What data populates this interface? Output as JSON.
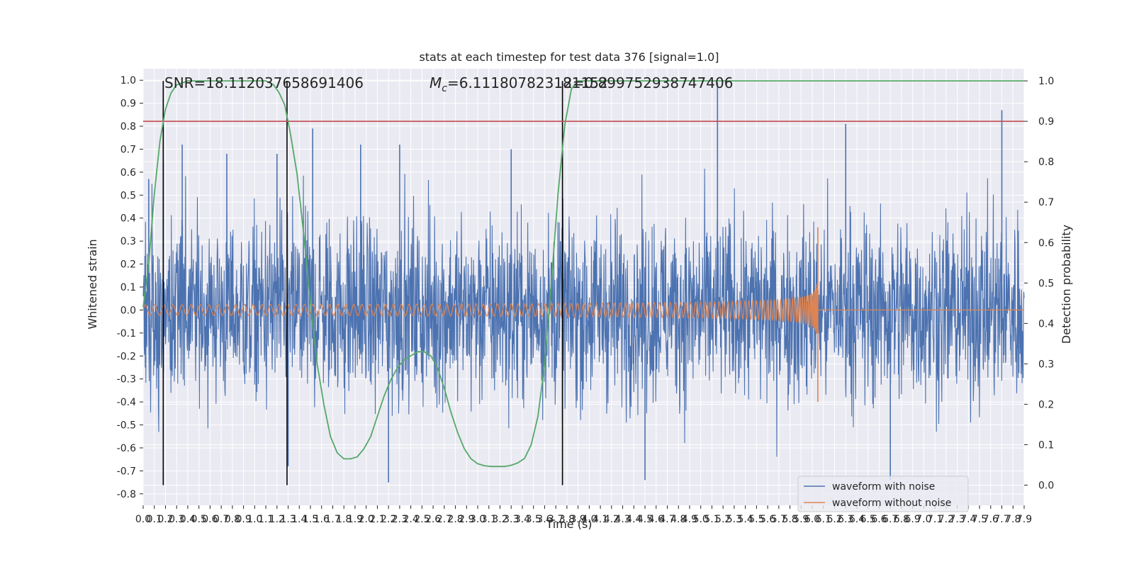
{
  "chart_data": {
    "type": "line",
    "title": "stats at each timestep for test data 376 [signal=1.0]",
    "xlabel": "Time (s)",
    "ylabel": "Whitened strain",
    "y2label": "Detection probability",
    "xlim": [
      0.0,
      7.9
    ],
    "ylim": [
      -0.85,
      1.05
    ],
    "y2lim": [
      -0.05,
      1.03
    ],
    "xticks": [
      "0.0",
      "0.1",
      "0.2",
      "0.3",
      "0.4",
      "0.5",
      "0.6",
      "0.7",
      "0.8",
      "0.9",
      "1.0",
      "1.1",
      "1.2",
      "1.3",
      "1.4",
      "1.5",
      "1.6",
      "1.7",
      "1.8",
      "1.9",
      "2.0",
      "2.1",
      "2.2",
      "2.3",
      "2.4",
      "2.5",
      "2.6",
      "2.7",
      "2.8",
      "2.9",
      "3.0",
      "3.1",
      "3.2",
      "3.3",
      "3.4",
      "3.5",
      "3.6",
      "3.7",
      "3.8",
      "3.9",
      "4.0",
      "4.1",
      "4.2",
      "4.3",
      "4.4",
      "4.5",
      "4.6",
      "4.7",
      "4.8",
      "4.9",
      "5.0",
      "5.1",
      "5.2",
      "5.3",
      "5.4",
      "5.5",
      "5.6",
      "5.7",
      "5.8",
      "5.9",
      "6.0",
      "6.1",
      "6.2",
      "6.3",
      "6.4",
      "6.5",
      "6.6",
      "6.7",
      "6.8",
      "6.9",
      "7.0",
      "7.1",
      "7.2",
      "7.3",
      "7.4",
      "7.5",
      "7.6",
      "7.7",
      "7.8",
      "7.9"
    ],
    "yticks": [
      "1.0",
      "0.9",
      "0.8",
      "0.7",
      "0.6",
      "0.5",
      "0.4",
      "0.3",
      "0.2",
      "0.1",
      "0.0",
      "-0.1",
      "-0.2",
      "-0.3",
      "-0.4",
      "-0.5",
      "-0.6",
      "-0.7",
      "-0.8"
    ],
    "y2ticks": [
      "1.0",
      "0.9",
      "0.8",
      "0.7",
      "0.6",
      "0.5",
      "0.4",
      "0.3",
      "0.2",
      "0.1",
      "0.0"
    ],
    "annotations": {
      "snr": "SNR=18.112037658691406",
      "mc_prefix": "M",
      "mc_sub": "c",
      "mc_text": "=6.111807823181152",
      "overlap": "2=0.899752938747406"
    },
    "legend": {
      "placement": "lower right",
      "entries": [
        "waveform with noise",
        "waveform without noise"
      ]
    },
    "series": [
      {
        "name": "waveform with noise",
        "color": "#4c72b0",
        "description_of_shape": "noisy whitened strain",
        "envelope_typical": [
          -0.45,
          0.5
        ],
        "spikes": [
          {
            "x": 0.05,
            "y": 0.57
          },
          {
            "x": 0.18,
            "y": 0.65
          },
          {
            "x": 0.35,
            "y": 0.72
          },
          {
            "x": 0.75,
            "y": 0.68
          },
          {
            "x": 1.2,
            "y": 0.68
          },
          {
            "x": 1.3,
            "y": -0.68
          },
          {
            "x": 1.52,
            "y": 0.79
          },
          {
            "x": 1.95,
            "y": 0.72
          },
          {
            "x": 2.3,
            "y": 0.72
          },
          {
            "x": 2.2,
            "y": -0.75
          },
          {
            "x": 3.3,
            "y": 0.7
          },
          {
            "x": 4.5,
            "y": -0.74
          },
          {
            "x": 5.15,
            "y": 0.99
          },
          {
            "x": 6.3,
            "y": 0.81
          },
          {
            "x": 6.7,
            "y": -0.74
          },
          {
            "x": 7.7,
            "y": 0.87
          }
        ]
      },
      {
        "name": "waveform without noise",
        "color": "#dd8452",
        "description_of_shape": "chirp signal",
        "start_amplitude": 0.025,
        "peak": {
          "x": 6.05,
          "y_max": 0.36,
          "y_min": -0.4
        },
        "end_time": 6.05
      }
    ],
    "detection_probability": {
      "color": "#55a868",
      "axis": "right",
      "points": [
        [
          0.0,
          0.44
        ],
        [
          0.05,
          0.55
        ],
        [
          0.1,
          0.72
        ],
        [
          0.15,
          0.85
        ],
        [
          0.2,
          0.93
        ],
        [
          0.25,
          0.97
        ],
        [
          0.3,
          0.99
        ],
        [
          0.4,
          1.0
        ],
        [
          1.1,
          1.0
        ],
        [
          1.17,
          0.99
        ],
        [
          1.22,
          0.97
        ],
        [
          1.27,
          0.94
        ],
        [
          1.32,
          0.87
        ],
        [
          1.38,
          0.77
        ],
        [
          1.44,
          0.62
        ],
        [
          1.5,
          0.45
        ],
        [
          1.56,
          0.3
        ],
        [
          1.62,
          0.2
        ],
        [
          1.68,
          0.12
        ],
        [
          1.74,
          0.08
        ],
        [
          1.8,
          0.065
        ],
        [
          1.86,
          0.065
        ],
        [
          1.92,
          0.07
        ],
        [
          1.98,
          0.09
        ],
        [
          2.04,
          0.12
        ],
        [
          2.1,
          0.17
        ],
        [
          2.16,
          0.22
        ],
        [
          2.22,
          0.26
        ],
        [
          2.28,
          0.29
        ],
        [
          2.34,
          0.31
        ],
        [
          2.4,
          0.32
        ],
        [
          2.46,
          0.33
        ],
        [
          2.52,
          0.33
        ],
        [
          2.58,
          0.32
        ],
        [
          2.64,
          0.29
        ],
        [
          2.7,
          0.24
        ],
        [
          2.76,
          0.18
        ],
        [
          2.82,
          0.13
        ],
        [
          2.88,
          0.09
        ],
        [
          2.94,
          0.065
        ],
        [
          3.0,
          0.053
        ],
        [
          3.06,
          0.048
        ],
        [
          3.12,
          0.046
        ],
        [
          3.18,
          0.046
        ],
        [
          3.24,
          0.046
        ],
        [
          3.3,
          0.049
        ],
        [
          3.36,
          0.055
        ],
        [
          3.42,
          0.066
        ],
        [
          3.48,
          0.1
        ],
        [
          3.54,
          0.17
        ],
        [
          3.6,
          0.3
        ],
        [
          3.66,
          0.5
        ],
        [
          3.72,
          0.72
        ],
        [
          3.78,
          0.89
        ],
        [
          3.84,
          0.98
        ],
        [
          3.9,
          1.0
        ],
        [
          7.9,
          1.0
        ]
      ]
    },
    "threshold": {
      "color": "#c44e52",
      "axis": "right",
      "value": 0.9
    },
    "vertical_markers": {
      "color": "#000000",
      "x": [
        0.18,
        1.29,
        3.76
      ],
      "y_range_right_axis": [
        0.0,
        1.0
      ]
    }
  }
}
